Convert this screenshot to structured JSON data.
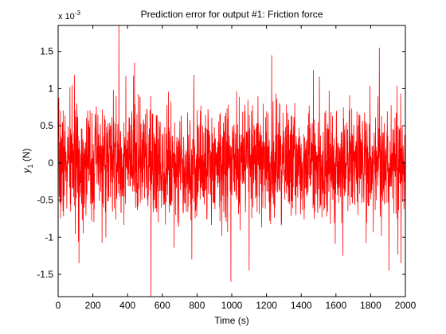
{
  "chart_data": {
    "type": "line",
    "title": "Prediction error for output #1: Friction force",
    "xlabel": "Time (s)",
    "ylabel": {
      "main": "y",
      "sub": "1",
      "unit": " (N)"
    },
    "y_multiplier": {
      "prefix": "x 10",
      "exponent": "-3"
    },
    "xlim": [
      0,
      2000
    ],
    "ylim": [
      -1.8,
      1.85
    ],
    "x_ticks": [
      0,
      200,
      400,
      600,
      800,
      1000,
      1200,
      1400,
      1600,
      1800,
      2000
    ],
    "y_ticks": [
      -1.5,
      -1,
      -0.5,
      0,
      0.5,
      1,
      1.5
    ],
    "x_tick_labels": [
      "0",
      "200",
      "400",
      "600",
      "800",
      "1000",
      "1200",
      "1400",
      "1600",
      "1800",
      "2000"
    ],
    "y_tick_labels": [
      "-1.5",
      "-1",
      "-0.5",
      "0",
      "0.5",
      "1",
      "1.5"
    ],
    "grid": false,
    "legend": false,
    "series": [
      {
        "color": "#ff0000",
        "noise": {
          "description": "dense zero-mean prediction error, ~±0.5e-3 typical, peaks near ±1.6e-3",
          "points": 2000,
          "std": 0.38,
          "seed": 7
        },
        "peaks": [
          {
            "x": 350,
            "y": 1.85
          },
          {
            "x": 535,
            "y": -1.8
          },
          {
            "x": 995,
            "y": -1.6
          },
          {
            "x": 1230,
            "y": 1.45
          },
          {
            "x": 1850,
            "y": 1.55
          },
          {
            "x": 1975,
            "y": -1.35
          },
          {
            "x": 1905,
            "y": -1.45
          },
          {
            "x": 1470,
            "y": 1.25
          },
          {
            "x": 120,
            "y": -1.35
          },
          {
            "x": 440,
            "y": 1.35
          },
          {
            "x": 770,
            "y": -1.3
          },
          {
            "x": 1100,
            "y": -1.45
          },
          {
            "x": 1640,
            "y": -1.25
          },
          {
            "x": 80,
            "y": 1.05
          }
        ]
      }
    ]
  }
}
